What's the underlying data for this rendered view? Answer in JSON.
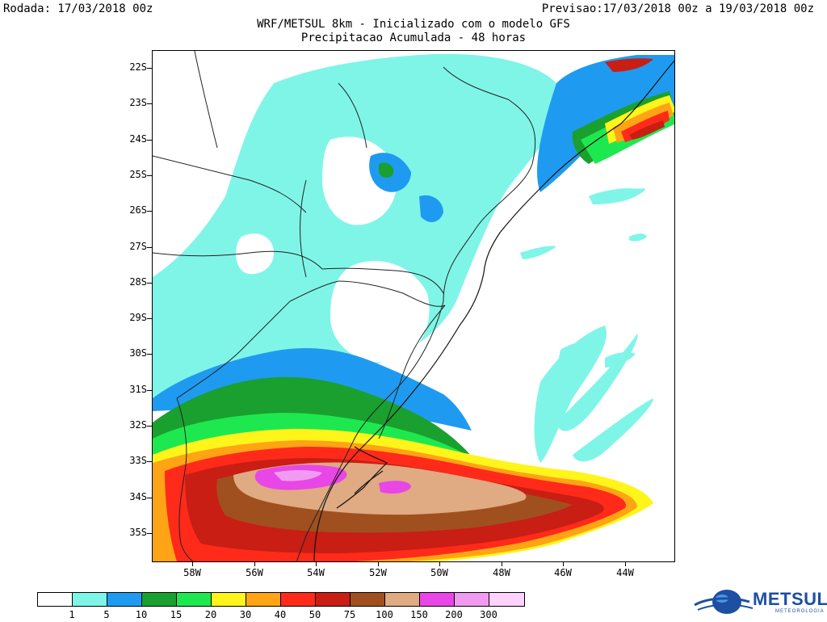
{
  "header": {
    "run_label": "Rodada: 17/03/2018 00z",
    "forecast_label": "Previsao:17/03/2018 00z a 19/03/2018 00z",
    "title": "WRF/METSUL 8km - Inicializado com o modelo GFS",
    "subtitle": "Precipitacao Acumulada - 48 horas"
  },
  "axes": {
    "lat_labels": [
      "22S",
      "23S",
      "24S",
      "25S",
      "26S",
      "27S",
      "28S",
      "29S",
      "30S",
      "31S",
      "32S",
      "33S",
      "34S",
      "35S"
    ],
    "lon_labels": [
      "58W",
      "56W",
      "54W",
      "52W",
      "50W",
      "48W",
      "46W",
      "44W"
    ]
  },
  "legend": {
    "colors": [
      "#ffffff",
      "#7ff5e8",
      "#1e9bf0",
      "#1aa02e",
      "#1ee850",
      "#fff51a",
      "#ffa415",
      "#ff2a1a",
      "#c81e14",
      "#a0501e",
      "#e0aa82",
      "#e846e6",
      "#f09bf0",
      "#ffd2ff"
    ],
    "labels": [
      "1",
      "5",
      "10",
      "15",
      "20",
      "30",
      "40",
      "50",
      "75",
      "100",
      "150",
      "200",
      "300"
    ]
  },
  "brand": {
    "name": "METSUL",
    "tagline": "METEOROLOGIA",
    "color": "#1d4fa3"
  }
}
